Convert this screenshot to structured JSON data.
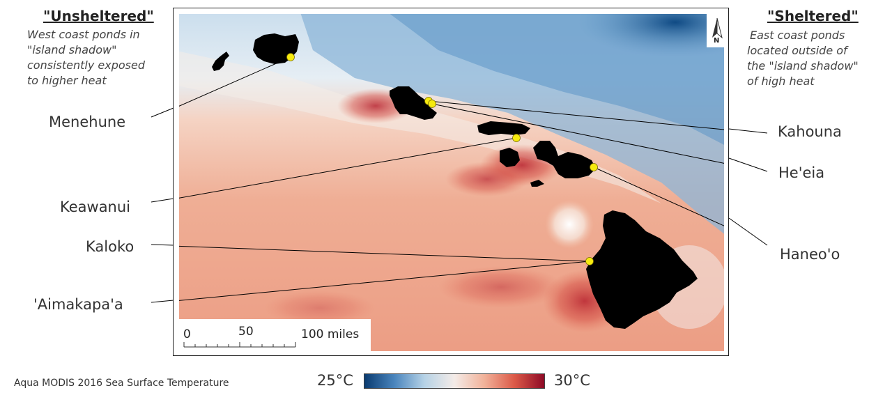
{
  "left_panel": {
    "title": "\"Unsheltered\"",
    "description": [
      "West coast ponds in",
      "\"island shadow\"",
      "consistently exposed",
      "to higher heat"
    ]
  },
  "right_panel": {
    "title": "\"Sheltered\"",
    "description": [
      "East coast ponds",
      "located outside of",
      "the \"island shadow\"",
      "of high heat"
    ]
  },
  "ponds": {
    "menehune": "Menehune",
    "keawanui": "Keawanui",
    "kaloko": "Kaloko",
    "aimakapaa": "'Aimakapa'a",
    "kahouna": "Kahouna",
    "heeia": "He'eia",
    "haneoo": "Haneo'o"
  },
  "scale_bar": {
    "zero": "0",
    "mid": "50",
    "end": "100 miles"
  },
  "north_arrow": {
    "label": "N"
  },
  "source": "Aqua MODIS 2016 Sea Surface Temperature",
  "legend": {
    "min_label": "25°C",
    "max_label": "30°C",
    "colors": [
      "#0a3b70",
      "#4a85bd",
      "#b6d2e6",
      "#f4ece8",
      "#f1b29a",
      "#dc5a48",
      "#8e0a26"
    ]
  },
  "colors": {
    "site_marker": "#f6ea0f",
    "island": "#000000"
  }
}
